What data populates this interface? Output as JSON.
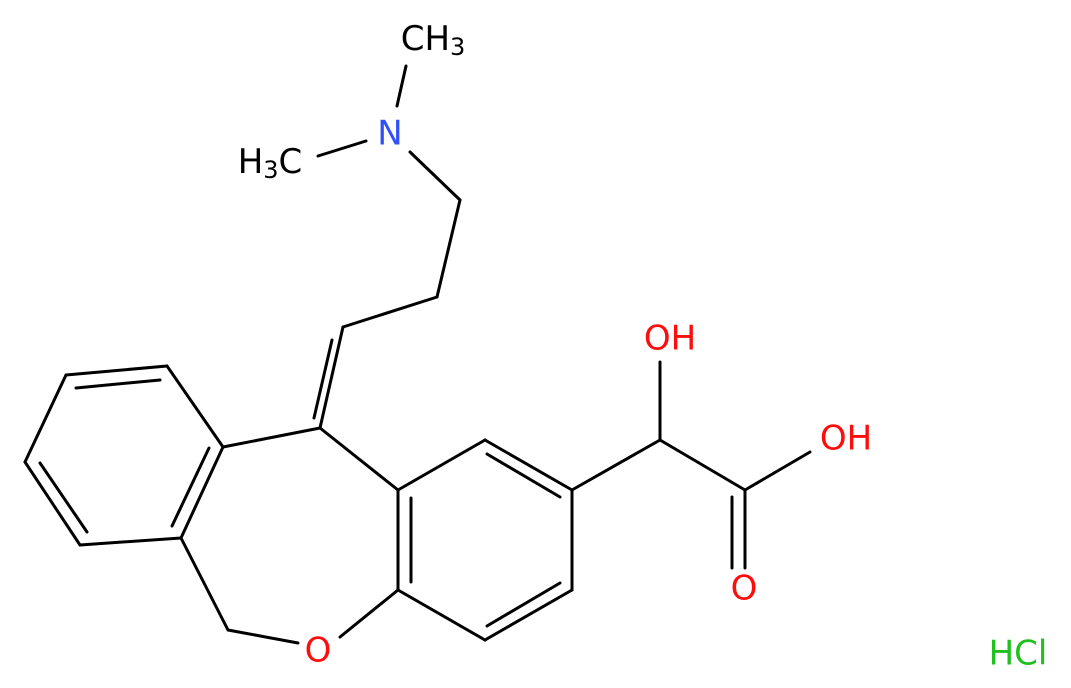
{
  "molecule": {
    "methyl_top": {
      "text": "CH",
      "sub": "3"
    },
    "methyl_left": {
      "pre": "H",
      "sub": "3",
      "post": "C"
    },
    "nitrogen": "N",
    "hydroxyl": "OH",
    "acid_hydroxyl": "OH",
    "carbonyl_oxygen": "O",
    "ring_oxygen": "O",
    "salt": "HCl"
  }
}
